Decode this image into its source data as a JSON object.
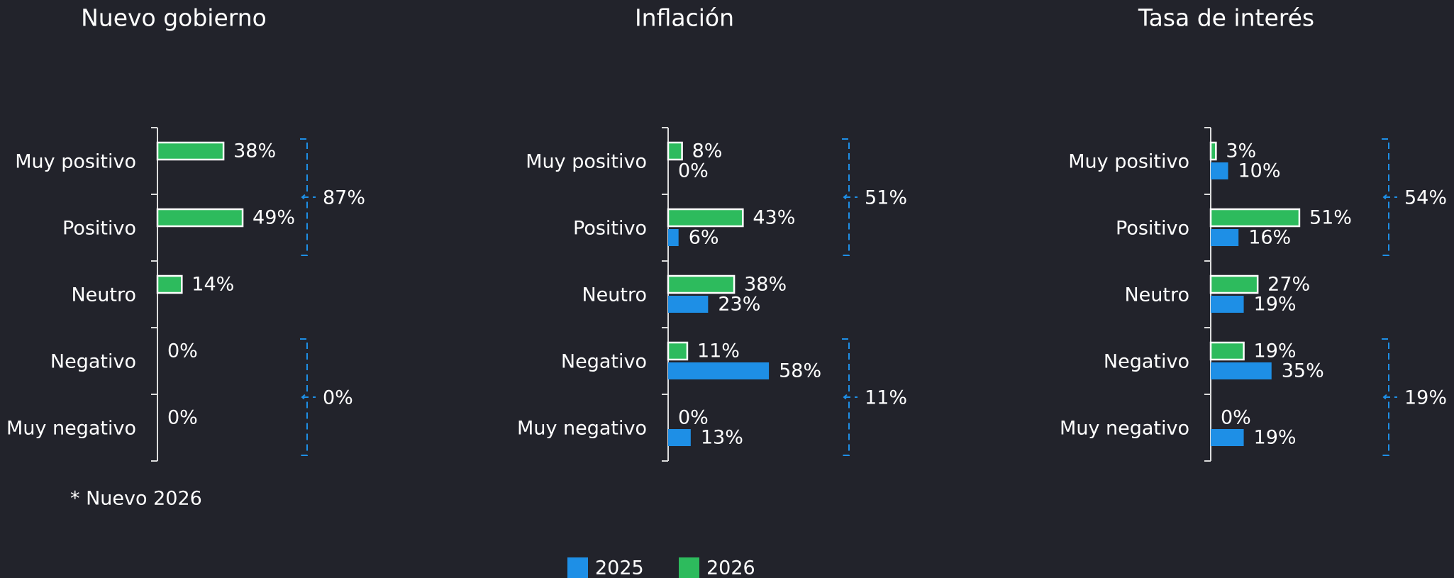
{
  "chart_data": [
    {
      "type": "bar",
      "orientation": "horizontal",
      "title": "Nuevo gobierno",
      "categories": [
        "Muy positivo",
        "Positivo",
        "Neutro",
        "Negativo",
        "Muy negativo"
      ],
      "series": [
        {
          "name": "2026",
          "color": "#2dbb5d",
          "values": [
            38,
            49,
            14,
            0,
            0
          ],
          "value_labels": [
            "38%",
            "49%",
            "14%",
            "0%",
            "0%"
          ]
        }
      ],
      "brackets": [
        "87%",
        "0%"
      ],
      "footnote": "* Nuevo 2026"
    },
    {
      "type": "bar",
      "orientation": "horizontal",
      "title": "Inflación",
      "categories": [
        "Muy positivo",
        "Positivo",
        "Neutro",
        "Negativo",
        "Muy negativo"
      ],
      "series": [
        {
          "name": "2025",
          "color": "#1e8fe6",
          "values": [
            0,
            6,
            23,
            58,
            13
          ],
          "value_labels": [
            "0%",
            "6%",
            "23%",
            "58%",
            "13%"
          ]
        },
        {
          "name": "2026",
          "color": "#2dbb5d",
          "values": [
            8,
            43,
            38,
            11,
            0
          ],
          "value_labels": [
            "8%",
            "43%",
            "38%",
            "11%",
            "0%"
          ]
        }
      ],
      "brackets": [
        "51%",
        "11%"
      ]
    },
    {
      "type": "bar",
      "orientation": "horizontal",
      "title": "Tasa de interés",
      "categories": [
        "Muy positivo",
        "Positivo",
        "Neutro",
        "Negativo",
        "Muy negativo"
      ],
      "series": [
        {
          "name": "2025",
          "color": "#1e8fe6",
          "values": [
            10,
            16,
            19,
            35,
            19
          ],
          "value_labels": [
            "10%",
            "16%",
            "19%",
            "35%",
            "19%"
          ]
        },
        {
          "name": "2026",
          "color": "#2dbb5d",
          "values": [
            3,
            51,
            27,
            19,
            0
          ],
          "value_labels": [
            "3%",
            "51%",
            "27%",
            "19%",
            "0%"
          ]
        }
      ],
      "brackets": [
        "54%",
        "19%"
      ]
    }
  ]
}
